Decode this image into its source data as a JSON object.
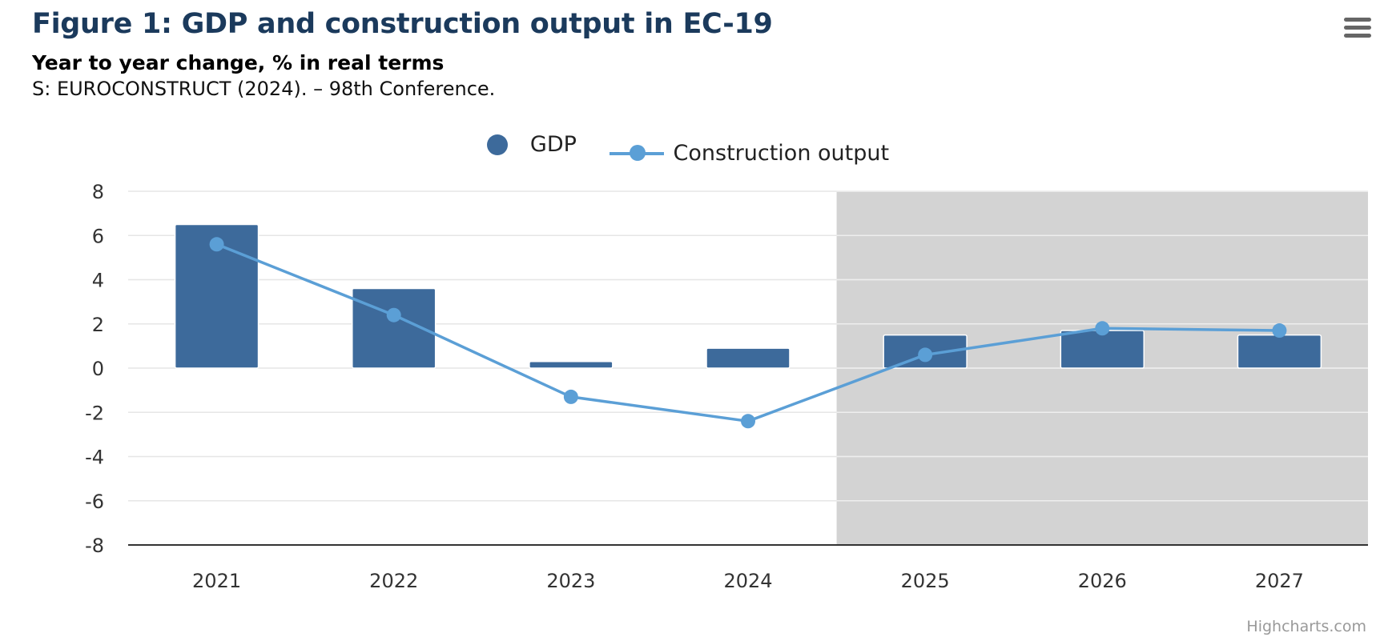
{
  "header": {
    "title": "Figure 1: GDP and construction output in EC-19",
    "subtitle": "Year to year change, % in real terms",
    "source": "S: EUROCONSTRUCT (2024). – 98th Conference."
  },
  "menu": {
    "icon": "hamburger-menu-icon"
  },
  "credits": "Highcharts.com",
  "colors": {
    "gdp": "#3d6a9b",
    "construction": "#5b9fd6",
    "forecast_band": "#d3d3d3",
    "grid": "#e6e6e6",
    "axis": "#333333"
  },
  "chart_data": {
    "type": "bar",
    "categories": [
      "2021",
      "2022",
      "2023",
      "2024",
      "2025",
      "2026",
      "2027"
    ],
    "series": [
      {
        "name": "GDP",
        "type": "bar",
        "values": [
          6.5,
          3.6,
          0.3,
          0.9,
          1.5,
          1.7,
          1.5
        ]
      },
      {
        "name": "Construction output",
        "type": "line",
        "values": [
          5.6,
          2.4,
          -1.3,
          -2.4,
          0.6,
          1.8,
          1.7
        ]
      }
    ],
    "ylim": [
      -8,
      8
    ],
    "yticks": [
      8,
      6,
      4,
      2,
      0,
      -2,
      -4,
      -6,
      -8
    ],
    "forecast_from": "2025",
    "grid": true,
    "legend": "top-center"
  }
}
